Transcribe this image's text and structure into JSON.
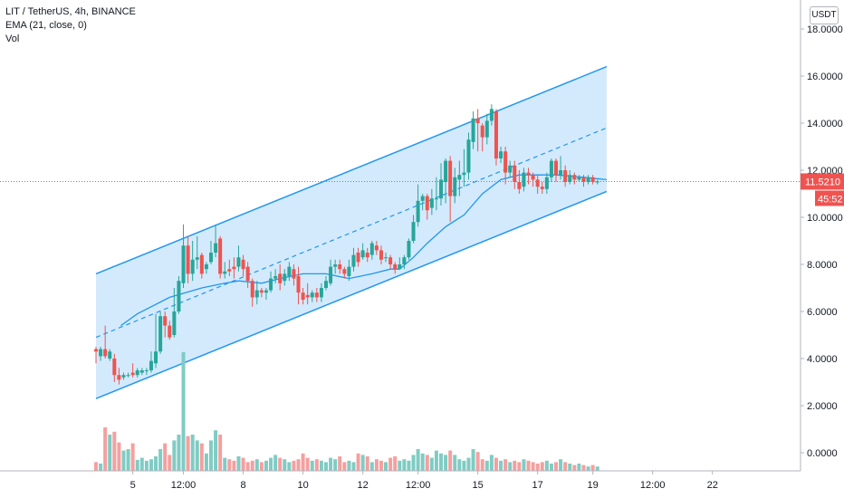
{
  "legend": {
    "symbol": "LIT / TetherUS, 4h, BINANCE",
    "indicator": "EMA (21, close, 0)",
    "volume": "Vol"
  },
  "currency_label": "USDT",
  "last_price_tag": "11.5210",
  "countdown_tag": "45:52",
  "colors": {
    "up": "#26a69a",
    "down": "#ef5350",
    "up_volume": "#7fccc4",
    "down_volume": "#f4a09f",
    "ema": "#2196f3",
    "channel_line": "#2196f3",
    "channel_fill": "#bbdefb",
    "price_tag_bg": "#ef5350"
  },
  "chart_data": {
    "type": "candlestick",
    "y_axis_ticks": [
      "0.0000",
      "2.0000",
      "4.0000",
      "6.0000",
      "8.0000",
      "10.0000",
      "12.0000",
      "14.0000",
      "16.0000",
      "18.0000"
    ],
    "y_range": [
      -0.8,
      18.3
    ],
    "x_axis_ticks": [
      "5",
      "12:00",
      "8",
      "10",
      "12",
      "12:00",
      "15",
      "17",
      "19",
      "12:00",
      "22"
    ],
    "last_price": 11.521,
    "candles": [
      [
        4.4,
        4.3,
        3.8,
        4.5
      ],
      [
        4.1,
        4.4,
        3.9,
        4.5
      ],
      [
        4.4,
        4.1,
        4.0,
        5.4
      ],
      [
        4.0,
        4.3,
        3.9,
        4.4
      ],
      [
        4.0,
        3.3,
        3.0,
        4.2
      ],
      [
        3.3,
        3.1,
        2.9,
        3.6
      ],
      [
        3.2,
        3.3,
        3.1,
        3.4
      ],
      [
        3.3,
        3.3,
        3.2,
        3.4
      ],
      [
        3.4,
        3.3,
        3.2,
        3.8
      ],
      [
        3.3,
        3.5,
        3.2,
        3.6
      ],
      [
        3.4,
        3.5,
        3.3,
        3.6
      ],
      [
        3.5,
        3.5,
        3.3,
        3.6
      ],
      [
        3.5,
        3.9,
        3.4,
        4.3
      ],
      [
        3.8,
        4.3,
        3.6,
        5.9
      ],
      [
        4.3,
        5.8,
        4.2,
        6.0
      ],
      [
        5.8,
        5.4,
        4.9,
        6.0
      ],
      [
        5.4,
        4.9,
        4.8,
        5.6
      ],
      [
        5.0,
        6.0,
        4.9,
        7.0
      ],
      [
        6.0,
        7.3,
        5.9,
        7.5
      ],
      [
        7.2,
        8.8,
        7.0,
        9.7
      ],
      [
        8.8,
        7.6,
        7.2,
        9.2
      ],
      [
        7.6,
        8.2,
        7.3,
        9.0
      ],
      [
        8.2,
        8.3,
        7.8,
        9.2
      ],
      [
        8.4,
        7.6,
        7.4,
        8.5
      ],
      [
        7.8,
        8.0,
        7.6,
        8.1
      ],
      [
        8.1,
        8.5,
        8.0,
        9.0
      ],
      [
        8.5,
        8.9,
        8.3,
        9.7
      ],
      [
        9.1,
        7.6,
        7.4,
        9.2
      ],
      [
        7.6,
        7.7,
        7.4,
        8.1
      ],
      [
        7.8,
        7.7,
        7.5,
        8.2
      ],
      [
        7.9,
        7.8,
        7.4,
        8.3
      ],
      [
        7.9,
        8.3,
        7.7,
        8.8
      ],
      [
        8.2,
        7.8,
        7.5,
        8.4
      ],
      [
        7.9,
        7.3,
        7.0,
        8.1
      ],
      [
        7.3,
        6.6,
        6.2,
        7.4
      ],
      [
        6.6,
        6.9,
        6.3,
        7.3
      ],
      [
        6.9,
        6.8,
        6.6,
        7.0
      ],
      [
        6.8,
        6.9,
        6.5,
        7.0
      ],
      [
        6.9,
        7.4,
        6.8,
        7.7
      ],
      [
        7.4,
        7.5,
        7.2,
        7.8
      ],
      [
        7.6,
        7.2,
        6.9,
        8.0
      ],
      [
        7.3,
        7.6,
        7.1,
        7.8
      ],
      [
        7.5,
        7.9,
        7.3,
        8.1
      ],
      [
        7.8,
        7.4,
        7.1,
        8.0
      ],
      [
        7.5,
        6.8,
        6.3,
        7.9
      ],
      [
        6.8,
        6.5,
        6.3,
        7.0
      ],
      [
        6.7,
        6.6,
        6.3,
        7.2
      ],
      [
        6.6,
        6.8,
        6.4,
        6.9
      ],
      [
        6.8,
        6.6,
        6.4,
        7.0
      ],
      [
        6.6,
        7.0,
        6.4,
        7.2
      ],
      [
        7.0,
        7.3,
        6.9,
        7.5
      ],
      [
        7.2,
        7.9,
        7.1,
        8.2
      ],
      [
        7.9,
        8.0,
        7.6,
        8.2
      ],
      [
        8.0,
        7.8,
        7.6,
        8.2
      ],
      [
        7.8,
        7.6,
        7.4,
        7.9
      ],
      [
        7.5,
        7.9,
        7.3,
        8.2
      ],
      [
        7.9,
        8.4,
        7.7,
        8.7
      ],
      [
        8.5,
        8.1,
        7.9,
        8.7
      ],
      [
        8.3,
        8.6,
        8.2,
        8.9
      ],
      [
        8.5,
        8.3,
        8.1,
        8.7
      ],
      [
        8.4,
        8.9,
        8.2,
        9.0
      ],
      [
        8.8,
        8.6,
        8.4,
        9.0
      ],
      [
        8.6,
        8.2,
        8.0,
        8.8
      ],
      [
        8.3,
        8.3,
        8.1,
        8.5
      ],
      [
        8.3,
        8.0,
        7.8,
        8.4
      ],
      [
        8.0,
        7.8,
        7.6,
        8.1
      ],
      [
        7.8,
        8.0,
        7.8,
        8.3
      ],
      [
        8.0,
        8.3,
        7.8,
        8.4
      ],
      [
        8.3,
        9.0,
        8.2,
        9.1
      ],
      [
        9.0,
        9.8,
        8.9,
        10.1
      ],
      [
        9.8,
        10.7,
        9.6,
        11.4
      ],
      [
        10.7,
        10.9,
        10.3,
        11.0
      ],
      [
        10.9,
        10.3,
        9.9,
        11.0
      ],
      [
        10.4,
        10.8,
        10.1,
        11.2
      ],
      [
        10.8,
        10.8,
        10.3,
        11.7
      ],
      [
        10.8,
        11.6,
        10.5,
        12.3
      ],
      [
        11.5,
        12.4,
        10.6,
        12.5
      ],
      [
        12.4,
        10.9,
        9.8,
        12.6
      ],
      [
        10.9,
        11.7,
        10.6,
        12.1
      ],
      [
        11.6,
        11.8,
        10.9,
        12.4
      ],
      [
        11.8,
        11.9,
        11.3,
        12.9
      ],
      [
        11.9,
        13.3,
        11.6,
        13.6
      ],
      [
        13.2,
        14.2,
        12.9,
        14.5
      ],
      [
        14.2,
        14.0,
        12.8,
        14.6
      ],
      [
        13.9,
        13.4,
        12.8,
        14.0
      ],
      [
        13.4,
        14.1,
        13.1,
        14.4
      ],
      [
        14.1,
        14.6,
        13.9,
        14.8
      ],
      [
        14.5,
        12.5,
        12.2,
        14.6
      ],
      [
        12.5,
        12.8,
        12.3,
        13.0
      ],
      [
        12.8,
        11.9,
        11.4,
        13.0
      ],
      [
        11.9,
        12.2,
        11.7,
        12.4
      ],
      [
        12.2,
        11.5,
        11.2,
        12.4
      ],
      [
        11.5,
        11.2,
        11.0,
        12.0
      ],
      [
        11.3,
        11.9,
        11.1,
        12.1
      ],
      [
        11.9,
        11.8,
        11.4,
        12.1
      ],
      [
        11.8,
        11.6,
        11.3,
        11.9
      ],
      [
        11.6,
        11.3,
        11.0,
        11.8
      ],
      [
        11.3,
        11.2,
        11.0,
        11.5
      ],
      [
        11.2,
        11.7,
        11.0,
        11.9
      ],
      [
        11.7,
        12.4,
        11.5,
        12.5
      ],
      [
        12.4,
        11.8,
        11.5,
        12.5
      ],
      [
        11.8,
        12.0,
        11.6,
        12.6
      ],
      [
        12.0,
        11.5,
        11.3,
        12.2
      ],
      [
        11.5,
        11.8,
        11.4,
        12.0
      ],
      [
        11.8,
        11.6,
        11.4,
        11.9
      ],
      [
        11.6,
        11.7,
        11.5,
        11.8
      ],
      [
        11.7,
        11.5,
        11.3,
        11.8
      ],
      [
        11.5,
        11.7,
        11.4,
        11.8
      ],
      [
        11.7,
        11.5,
        11.4,
        11.8
      ],
      [
        11.5,
        11.52,
        11.4,
        11.6
      ]
    ],
    "candle_fields": [
      "open",
      "close",
      "low",
      "high"
    ],
    "volume": [
      0.3,
      0.25,
      1.5,
      1.25,
      1.35,
      0.98,
      0.7,
      0.75,
      0.95,
      0.38,
      0.45,
      0.35,
      0.4,
      0.5,
      0.75,
      0.95,
      0.55,
      1.05,
      1.25,
      4.1,
      1.2,
      1.25,
      1.05,
      0.95,
      0.6,
      1.05,
      1.4,
      1.25,
      0.45,
      0.4,
      0.35,
      0.5,
      0.45,
      0.3,
      0.35,
      0.4,
      0.3,
      0.35,
      0.45,
      0.55,
      0.45,
      0.4,
      0.3,
      0.35,
      0.4,
      0.6,
      0.45,
      0.35,
      0.4,
      0.35,
      0.3,
      0.45,
      0.4,
      0.5,
      0.3,
      0.35,
      0.3,
      0.6,
      0.55,
      0.5,
      0.3,
      0.4,
      0.35,
      0.3,
      0.45,
      0.5,
      0.35,
      0.4,
      0.35,
      0.55,
      0.75,
      0.6,
      0.55,
      0.45,
      0.7,
      0.6,
      0.55,
      0.7,
      0.55,
      0.4,
      0.35,
      0.45,
      0.75,
      0.65,
      0.4,
      0.35,
      0.55,
      0.45,
      0.35,
      0.4,
      0.3,
      0.35,
      0.3,
      0.4,
      0.35,
      0.3,
      0.25,
      0.3,
      0.35,
      0.25,
      0.3,
      0.4,
      0.3,
      0.25,
      0.2,
      0.25,
      0.2,
      0.15,
      0.2,
      0.15
    ],
    "ema": [
      [
        5.4,
        5.4
      ],
      [
        9,
        5.9
      ],
      [
        16,
        6.6
      ],
      [
        23,
        7.0
      ],
      [
        28,
        7.2
      ],
      [
        31,
        7.3
      ],
      [
        36,
        7.2
      ],
      [
        40,
        7.4
      ],
      [
        45,
        7.6
      ],
      [
        50,
        7.6
      ],
      [
        55,
        7.4
      ],
      [
        60,
        7.6
      ],
      [
        64,
        7.8
      ],
      [
        66,
        7.8
      ],
      [
        69,
        8.3
      ],
      [
        72,
        8.9
      ],
      [
        76,
        9.6
      ],
      [
        80,
        10.1
      ],
      [
        84,
        11.0
      ],
      [
        88,
        11.6
      ],
      [
        92,
        11.8
      ],
      [
        96,
        11.8
      ],
      [
        100,
        11.8
      ],
      [
        106,
        11.7
      ],
      [
        111,
        11.6
      ]
    ],
    "channel": {
      "upper": [
        [
          0,
          7.6
        ],
        [
          111,
          16.4
        ]
      ],
      "middle": [
        [
          0,
          4.9
        ],
        [
          111,
          13.8
        ]
      ],
      "lower": [
        [
          0,
          2.3
        ],
        [
          111,
          11.1
        ]
      ]
    },
    "x_tick_index": [
      8,
      19,
      32,
      45,
      58,
      70,
      83,
      96,
      108,
      121,
      134
    ]
  }
}
